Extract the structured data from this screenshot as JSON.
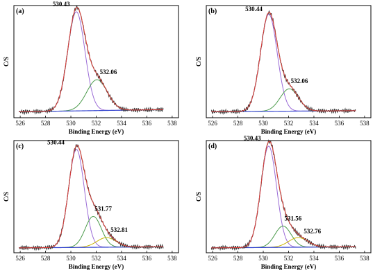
{
  "figure": {
    "panels": [
      "(a)",
      "(b)",
      "(c)",
      "(d)"
    ]
  },
  "colors": {
    "raw": "#3a3a3a",
    "envelope": "#e0413a",
    "main_peak": "#9a6bd6",
    "peak_2": "#4a9a4a",
    "peak_3": "#c8b400",
    "background": "#3a4ad0"
  },
  "chart_data": [
    {
      "panel": "(a)",
      "type": "line",
      "xlabel": "Binding Energy (eV)",
      "ylabel": "C/S",
      "xlim": [
        525.5,
        538.5
      ],
      "xticks": [
        526,
        528,
        530,
        532,
        534,
        536,
        538
      ],
      "ylim": [
        0,
        1
      ],
      "yticks_shown": false,
      "peaks": [
        {
          "center": 530.43,
          "height": 0.93,
          "fwhm": 1.6,
          "color_key": "main_peak"
        },
        {
          "center": 532.06,
          "height": 0.29,
          "fwhm": 1.9,
          "color_key": "peak_2"
        }
      ],
      "baseline": {
        "x_start": 525.9,
        "x_end": 537.3,
        "y_start": 0.03,
        "y_end": 0.05
      },
      "peak_labels": [
        "530.43",
        "532.06"
      ]
    },
    {
      "panel": "(b)",
      "type": "line",
      "xlabel": "Binding Energy (eV)",
      "ylabel": "C/S",
      "xlim": [
        525.5,
        538.5
      ],
      "xticks": [
        526,
        528,
        530,
        532,
        534,
        536,
        538
      ],
      "ylim": [
        0,
        1
      ],
      "yticks_shown": false,
      "peaks": [
        {
          "center": 530.44,
          "height": 0.91,
          "fwhm": 1.55,
          "color_key": "main_peak"
        },
        {
          "center": 532.06,
          "height": 0.21,
          "fwhm": 1.7,
          "color_key": "peak_2"
        }
      ],
      "baseline": {
        "x_start": 525.9,
        "x_end": 537.3,
        "y_start": 0.03,
        "y_end": 0.04
      },
      "peak_labels": [
        "530.44",
        "532.06"
      ]
    },
    {
      "panel": "(c)",
      "type": "line",
      "xlabel": "Binding Energy (eV)",
      "ylabel": "C/S",
      "xlim": [
        525.5,
        538.5
      ],
      "xticks": [
        526,
        528,
        530,
        532,
        534,
        536,
        538
      ],
      "ylim": [
        0,
        1
      ],
      "yticks_shown": false,
      "peaks": [
        {
          "center": 530.44,
          "height": 0.92,
          "fwhm": 1.45,
          "color_key": "main_peak"
        },
        {
          "center": 531.77,
          "height": 0.29,
          "fwhm": 1.5,
          "color_key": "peak_2"
        },
        {
          "center": 532.81,
          "height": 0.09,
          "fwhm": 1.8,
          "color_key": "peak_3"
        }
      ],
      "baseline": {
        "x_start": 525.9,
        "x_end": 537.3,
        "y_start": 0.02,
        "y_end": 0.03
      },
      "peak_labels": [
        "530.44",
        "531.77",
        "532.81"
      ]
    },
    {
      "panel": "(d)",
      "type": "line",
      "xlabel": "Binding Energy (eV)",
      "ylabel": "C/S",
      "xlim": [
        525.5,
        538.5
      ],
      "xticks": [
        526,
        528,
        530,
        532,
        534,
        536,
        538
      ],
      "ylim": [
        0,
        1
      ],
      "yticks_shown": false,
      "peaks": [
        {
          "center": 530.43,
          "height": 0.95,
          "fwhm": 1.45,
          "color_key": "main_peak"
        },
        {
          "center": 531.56,
          "height": 0.2,
          "fwhm": 1.5,
          "color_key": "peak_2"
        },
        {
          "center": 532.76,
          "height": 0.09,
          "fwhm": 1.8,
          "color_key": "peak_3"
        }
      ],
      "baseline": {
        "x_start": 525.9,
        "x_end": 537.3,
        "y_start": 0.02,
        "y_end": 0.03
      },
      "peak_labels": [
        "530.43",
        "531.56",
        "532.76"
      ]
    }
  ]
}
